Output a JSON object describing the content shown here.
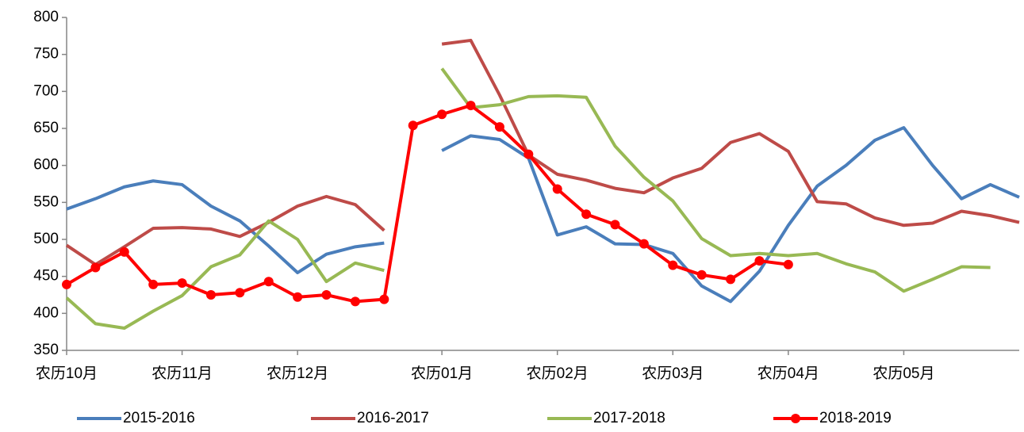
{
  "chart_data": {
    "type": "line",
    "categories": [
      "农历10月",
      null,
      null,
      null,
      "农历11月",
      null,
      null,
      null,
      "农历12月",
      null,
      null,
      null,
      null,
      "农历01月",
      null,
      null,
      null,
      "农历02月",
      null,
      null,
      null,
      "农历03月",
      null,
      null,
      null,
      "农历04月",
      null,
      null,
      null,
      "农历05月",
      null,
      null,
      null,
      null
    ],
    "ylim": [
      350,
      800
    ],
    "yticks": [
      350,
      400,
      450,
      500,
      550,
      600,
      650,
      700,
      750,
      800
    ],
    "grid": false,
    "legend": "bottom",
    "series": [
      {
        "name": "2015-2016",
        "color": "#4a7ebb",
        "markers": false,
        "values": [
          541,
          555,
          571,
          579,
          574,
          545,
          525,
          491,
          455,
          480,
          490,
          495,
          null,
          620,
          640,
          635,
          610,
          506,
          517,
          494,
          493,
          481,
          437,
          416,
          457,
          519,
          572,
          600,
          634,
          651,
          600,
          555,
          574,
          557
        ]
      },
      {
        "name": "2016-2017",
        "color": "#be4b48",
        "markers": false,
        "values": [
          492,
          466,
          490,
          515,
          516,
          514,
          504,
          523,
          545,
          558,
          547,
          512,
          null,
          764,
          769,
          695,
          614,
          588,
          580,
          569,
          563,
          583,
          596,
          631,
          643,
          619,
          551,
          548,
          529,
          519,
          522,
          538,
          532,
          523
        ]
      },
      {
        "name": "2017-2018",
        "color": "#98b954",
        "markers": false,
        "values": [
          421,
          386,
          380,
          403,
          424,
          463,
          479,
          525,
          500,
          443,
          468,
          458,
          null,
          731,
          678,
          682,
          693,
          694,
          692,
          626,
          584,
          552,
          501,
          478,
          481,
          478,
          481,
          467,
          456,
          430,
          446,
          463,
          462,
          null
        ]
      },
      {
        "name": "2018-2019",
        "color": "#ff0000",
        "markers": true,
        "values": [
          439,
          462,
          483,
          439,
          441,
          425,
          428,
          443,
          422,
          425,
          416,
          419,
          654,
          669,
          681,
          652,
          615,
          568,
          534,
          520,
          494,
          465,
          452,
          446,
          471,
          466,
          null,
          null,
          null,
          null,
          null,
          null,
          null,
          null
        ]
      }
    ]
  }
}
